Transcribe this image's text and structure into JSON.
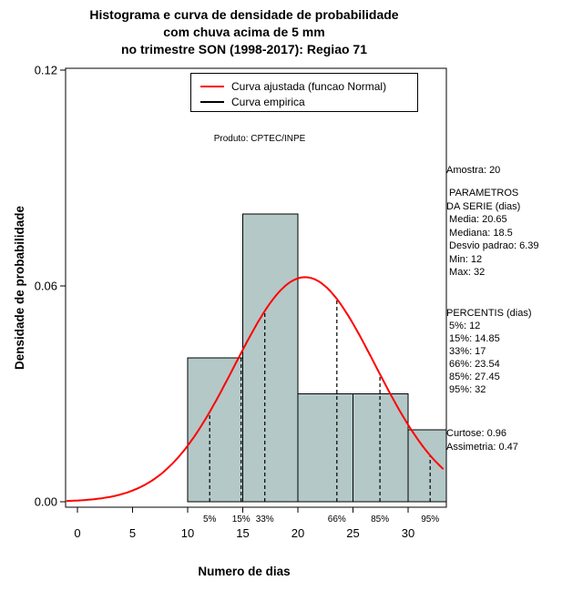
{
  "title": {
    "line1": "Histograma e curva de densidade de probabilidade",
    "line2": "com chuva acima de 5 mm",
    "line3": "no trimestre SON (1998-2017): Regiao 71"
  },
  "axes": {
    "x_label": "Numero de dias",
    "y_label": "Densidade de probabilidade"
  },
  "legend": {
    "items": [
      {
        "label": "Curva ajustada (funcao Normal)",
        "color": "#ff0000"
      },
      {
        "label": "Curva empirica",
        "color": "#000000"
      }
    ]
  },
  "watermark": "Produto: CPTEC/INPE",
  "side_panel": {
    "amostra": "Amostra: 20",
    "parametros": [
      " PARAMETROS",
      "DA SERIE (dias)",
      " Media: 20.65",
      " Mediana: 18.5",
      " Desvio padrao: 6.39",
      " Min: 12",
      " Max: 32"
    ],
    "percentis": [
      "PERCENTIS (dias)",
      " 5%: 12",
      " 15%: 14.85",
      " 33%: 17",
      " 66%: 23.54",
      " 85%: 27.45",
      " 95%: 32"
    ],
    "moments": [
      "Curtose: 0.96",
      "Assimetria: 0.47"
    ]
  },
  "chart_data": {
    "type": "histogram",
    "title": "Histograma e curva de densidade de probabilidade com chuva acima de 5 mm no trimestre SON (1998-2017): Regiao 71",
    "xlabel": "Numero de dias",
    "ylabel": "Densidade de probabilidade",
    "xlim": [
      0,
      33
    ],
    "ylim": [
      0,
      0.12
    ],
    "grid": false,
    "x_ticks": [
      0,
      5,
      10,
      15,
      20,
      25,
      30
    ],
    "y_ticks": [
      {
        "v": 0,
        "label": "0.00"
      },
      {
        "v": 0.06,
        "label": "0.06"
      },
      {
        "v": 0.12,
        "label": "0.12"
      }
    ],
    "histogram": {
      "breaks": [
        10,
        15,
        20,
        25,
        30,
        35
      ],
      "counts": [
        4,
        8,
        3,
        3,
        2
      ],
      "densities": [
        0.04,
        0.08,
        0.03,
        0.03,
        0.02
      ],
      "bar_color": "#b4c8c8",
      "bar_border": "#000000"
    },
    "normal_curve": {
      "mean": 20.65,
      "sd": 6.39,
      "peak_density": 0.0624,
      "color": "#ff0000"
    },
    "percentile_lines": [
      {
        "label": "5%",
        "x": 12
      },
      {
        "label": "15%",
        "x": 14.85
      },
      {
        "label": "33%",
        "x": 17
      },
      {
        "label": "66%",
        "x": 23.54
      },
      {
        "label": "85%",
        "x": 27.45
      },
      {
        "label": "95%",
        "x": 32
      }
    ],
    "stats": {
      "amostra": 20,
      "media": 20.65,
      "mediana": 18.5,
      "desvio_padrao": 6.39,
      "min": 12,
      "max": 32,
      "curtose": 0.96,
      "assimetria": 0.47
    }
  }
}
